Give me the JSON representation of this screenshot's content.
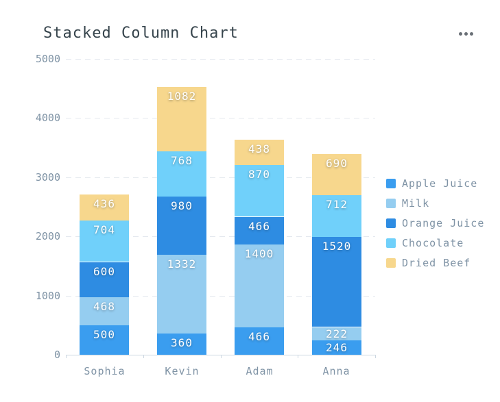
{
  "header": {
    "title": "Stacked Column Chart",
    "menu_icon": "ellipsis-icon"
  },
  "chart_data": {
    "type": "bar",
    "stacked": true,
    "title": "Stacked Column Chart",
    "xlabel": "",
    "ylabel": "",
    "categories": [
      "Sophia",
      "Kevin",
      "Adam",
      "Anna"
    ],
    "series": [
      {
        "name": "Apple Juice",
        "color": "#3a9def",
        "values": [
          500,
          360,
          466,
          246
        ]
      },
      {
        "name": "Milk",
        "color": "#95cdf0",
        "values": [
          468,
          1332,
          1400,
          222
        ]
      },
      {
        "name": "Orange Juice",
        "color": "#2e8ce2",
        "values": [
          600,
          980,
          466,
          1520
        ]
      },
      {
        "name": "Chocolate",
        "color": "#70d0fa",
        "values": [
          704,
          768,
          870,
          712
        ]
      },
      {
        "name": "Dried Beef",
        "color": "#f7d78d",
        "values": [
          436,
          1082,
          438,
          690
        ]
      }
    ],
    "totals": [
      2708,
      4522,
      3640,
      3390
    ],
    "ylim": [
      0,
      5000
    ],
    "yticks": [
      0,
      1000,
      2000,
      3000,
      4000,
      5000
    ],
    "grid": "dashed-horizontal",
    "legend_position": "right",
    "value_labels": "inside-top",
    "colors": {
      "title_text": "#36444c",
      "axis_text": "#7f93a5",
      "grid_line": "#e3e8ee",
      "axis_line": "#ccd7e1",
      "value_label_text": "#ffffff",
      "menu_dots": "#696f76",
      "background": "#ffffff"
    }
  }
}
